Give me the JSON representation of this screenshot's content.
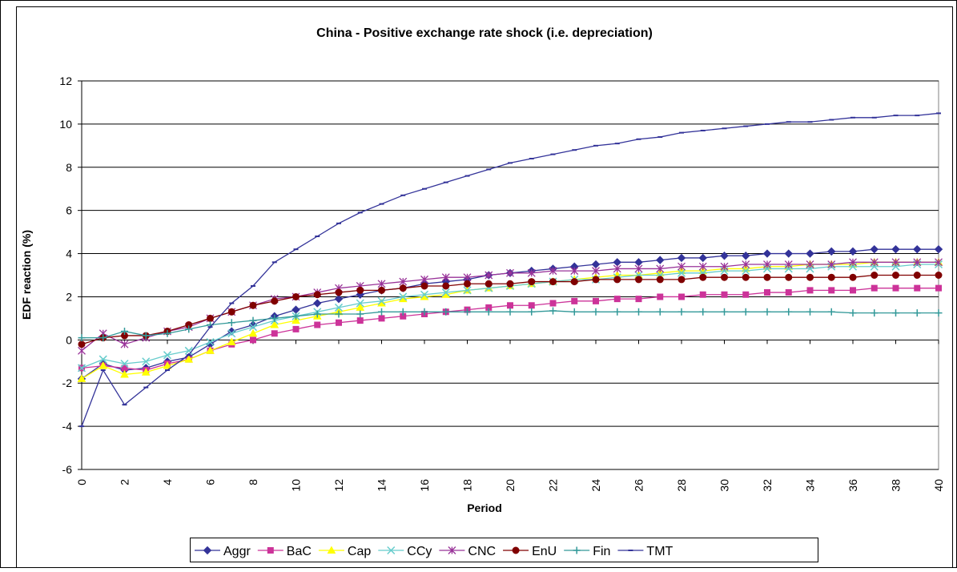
{
  "chart_data": {
    "type": "line",
    "title": "China - Positive exchange rate shock (i.e. depreciation)",
    "xlabel": "Period",
    "ylabel": "EDF reaction (%)",
    "x": [
      0,
      1,
      2,
      3,
      4,
      5,
      6,
      7,
      8,
      9,
      10,
      11,
      12,
      13,
      14,
      15,
      16,
      17,
      18,
      19,
      20,
      21,
      22,
      23,
      24,
      25,
      26,
      27,
      28,
      29,
      30,
      31,
      32,
      33,
      34,
      35,
      36,
      37,
      38,
      39,
      40
    ],
    "xlim": [
      0,
      40
    ],
    "xticks": [
      0,
      2,
      4,
      6,
      8,
      10,
      12,
      14,
      16,
      18,
      20,
      22,
      24,
      26,
      28,
      30,
      32,
      34,
      36,
      38,
      40
    ],
    "ylim": [
      -6,
      12
    ],
    "yticks": [
      -6,
      -4,
      -2,
      0,
      2,
      4,
      6,
      8,
      10,
      12
    ],
    "grid": true,
    "legend": "bottom",
    "series": [
      {
        "name": "Aggr",
        "color": "#333399",
        "marker": "diamond",
        "values": [
          -1.8,
          -1.1,
          -1.4,
          -1.3,
          -1.0,
          -0.8,
          -0.2,
          0.4,
          0.7,
          1.1,
          1.4,
          1.7,
          1.9,
          2.1,
          2.3,
          2.4,
          2.6,
          2.7,
          2.8,
          3.0,
          3.1,
          3.2,
          3.3,
          3.4,
          3.5,
          3.6,
          3.6,
          3.7,
          3.8,
          3.8,
          3.9,
          3.9,
          4.0,
          4.0,
          4.0,
          4.1,
          4.1,
          4.2,
          4.2,
          4.2,
          4.2
        ]
      },
      {
        "name": "BaC",
        "color": "#cc3399",
        "marker": "square",
        "values": [
          -1.3,
          -1.2,
          -1.3,
          -1.4,
          -1.1,
          -0.9,
          -0.5,
          -0.2,
          0.0,
          0.3,
          0.5,
          0.7,
          0.8,
          0.9,
          1.0,
          1.1,
          1.2,
          1.3,
          1.4,
          1.5,
          1.6,
          1.6,
          1.7,
          1.8,
          1.8,
          1.9,
          1.9,
          2.0,
          2.0,
          2.1,
          2.1,
          2.1,
          2.2,
          2.2,
          2.3,
          2.3,
          2.3,
          2.4,
          2.4,
          2.4,
          2.4
        ]
      },
      {
        "name": "Cap",
        "color": "#ffff00",
        "marker": "triangle",
        "values": [
          -1.8,
          -1.2,
          -1.6,
          -1.5,
          -1.2,
          -0.9,
          -0.5,
          -0.1,
          0.3,
          0.7,
          0.9,
          1.1,
          1.3,
          1.5,
          1.7,
          1.9,
          2.0,
          2.1,
          2.3,
          2.4,
          2.5,
          2.6,
          2.7,
          2.8,
          2.9,
          3.0,
          3.0,
          3.1,
          3.2,
          3.2,
          3.3,
          3.3,
          3.4,
          3.4,
          3.5,
          3.5,
          3.5,
          3.6,
          3.6,
          3.6,
          3.6
        ]
      },
      {
        "name": "CCy",
        "color": "#66cccc",
        "marker": "x",
        "values": [
          -1.3,
          -0.9,
          -1.1,
          -1.0,
          -0.7,
          -0.5,
          -0.1,
          0.3,
          0.6,
          0.9,
          1.1,
          1.3,
          1.5,
          1.7,
          1.8,
          2.0,
          2.1,
          2.2,
          2.3,
          2.4,
          2.5,
          2.6,
          2.7,
          2.8,
          2.8,
          2.9,
          3.0,
          3.0,
          3.1,
          3.1,
          3.2,
          3.2,
          3.3,
          3.3,
          3.3,
          3.4,
          3.4,
          3.4,
          3.4,
          3.5,
          3.5
        ]
      },
      {
        "name": "CNC",
        "color": "#993399",
        "marker": "star",
        "values": [
          -0.5,
          0.3,
          -0.2,
          0.1,
          0.4,
          0.6,
          1.0,
          1.3,
          1.6,
          1.9,
          2.0,
          2.2,
          2.4,
          2.5,
          2.6,
          2.7,
          2.8,
          2.9,
          2.9,
          3.0,
          3.1,
          3.1,
          3.2,
          3.2,
          3.2,
          3.3,
          3.3,
          3.3,
          3.4,
          3.4,
          3.4,
          3.5,
          3.5,
          3.5,
          3.5,
          3.5,
          3.6,
          3.6,
          3.6,
          3.6,
          3.6
        ]
      },
      {
        "name": "EnU",
        "color": "#800000",
        "marker": "circle",
        "values": [
          -0.2,
          0.1,
          0.2,
          0.2,
          0.4,
          0.7,
          1.0,
          1.3,
          1.6,
          1.8,
          2.0,
          2.1,
          2.2,
          2.3,
          2.3,
          2.4,
          2.5,
          2.5,
          2.6,
          2.6,
          2.6,
          2.7,
          2.7,
          2.7,
          2.8,
          2.8,
          2.8,
          2.8,
          2.8,
          2.9,
          2.9,
          2.9,
          2.9,
          2.9,
          2.9,
          2.9,
          2.9,
          3.0,
          3.0,
          3.0,
          3.0
        ]
      },
      {
        "name": "Fin",
        "color": "#339999",
        "marker": "plus",
        "values": [
          0.1,
          0.1,
          0.4,
          0.2,
          0.3,
          0.5,
          0.7,
          0.8,
          0.9,
          1.0,
          1.1,
          1.2,
          1.2,
          1.2,
          1.3,
          1.3,
          1.3,
          1.3,
          1.3,
          1.3,
          1.3,
          1.3,
          1.35,
          1.3,
          1.3,
          1.3,
          1.3,
          1.3,
          1.3,
          1.3,
          1.3,
          1.3,
          1.3,
          1.3,
          1.3,
          1.3,
          1.25,
          1.25,
          1.25,
          1.25,
          1.25
        ]
      },
      {
        "name": "TMT",
        "color": "#333399",
        "marker": "dash",
        "values": [
          -4.0,
          -1.4,
          -3.0,
          -2.2,
          -1.4,
          -0.7,
          0.6,
          1.7,
          2.5,
          3.6,
          4.2,
          4.8,
          5.4,
          5.9,
          6.3,
          6.7,
          7.0,
          7.3,
          7.6,
          7.9,
          8.2,
          8.4,
          8.6,
          8.8,
          9.0,
          9.1,
          9.3,
          9.4,
          9.6,
          9.7,
          9.8,
          9.9,
          10.0,
          10.1,
          10.1,
          10.2,
          10.3,
          10.3,
          10.4,
          10.4,
          10.5
        ]
      }
    ]
  }
}
